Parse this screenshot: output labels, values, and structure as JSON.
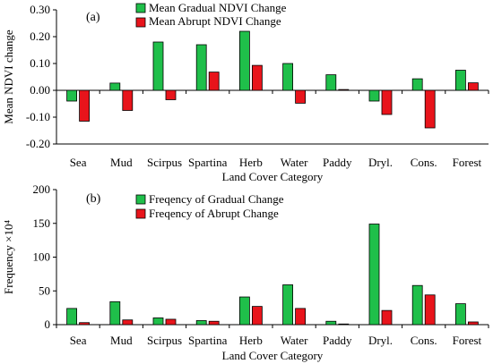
{
  "chart_data": [
    {
      "panel_label": "(a)",
      "type": "bar",
      "xlabel": "Land Cover Category",
      "ylabel": "Mean NDVI change",
      "ylim": [
        -0.2,
        0.3
      ],
      "yticks": [
        -0.2,
        -0.1,
        0.0,
        0.1,
        0.2,
        0.3
      ],
      "ytick_labels": [
        "-0.20",
        "-0.10",
        "0.00",
        "0.10",
        "0.20",
        "0.30"
      ],
      "categories": [
        "Sea",
        "Mud",
        "Scirpus",
        "Spartina",
        "Herb",
        "Water",
        "Paddy",
        "Dryl.",
        "Cons.",
        "Forest"
      ],
      "series": [
        {
          "name": "Mean Gradual NDVI Change",
          "color": "#1fbf4a",
          "values": [
            -0.04,
            0.027,
            0.18,
            0.17,
            0.22,
            0.1,
            0.058,
            -0.04,
            0.043,
            0.075
          ]
        },
        {
          "name": "Mean Abrupt NDVI Change",
          "color": "#e8141b",
          "values": [
            -0.115,
            -0.075,
            -0.035,
            0.068,
            0.093,
            -0.048,
            0.003,
            -0.09,
            -0.14,
            0.028
          ]
        }
      ],
      "legend": "top-center",
      "grid": false
    },
    {
      "panel_label": "(b)",
      "type": "bar",
      "xlabel": "Land Cover Category",
      "ylabel": "Frequency ×10⁴",
      "ylim": [
        0,
        200
      ],
      "yticks": [
        0,
        50,
        100,
        150,
        200
      ],
      "ytick_labels": [
        "0",
        "50",
        "100",
        "150",
        "200"
      ],
      "categories": [
        "Sea",
        "Mud",
        "Scirpus",
        "Spartina",
        "Herb",
        "Water",
        "Paddy",
        "Dryl.",
        "Cons.",
        "Forest"
      ],
      "series": [
        {
          "name": "Freqency of Gradual Change",
          "color": "#1fbf4a",
          "values": [
            24,
            34,
            10,
            6,
            41,
            59,
            5,
            149,
            58,
            31
          ]
        },
        {
          "name": "Freqency of Abrupt Change",
          "color": "#e8141b",
          "values": [
            3,
            7,
            8,
            5,
            27,
            24,
            1,
            21,
            44,
            4
          ]
        }
      ],
      "legend": "top-center",
      "grid": false
    }
  ]
}
